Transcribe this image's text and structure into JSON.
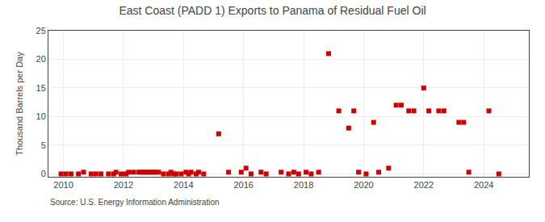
{
  "chart_data": {
    "type": "scatter",
    "title": "East Coast (PADD 1) Exports to Panama of Residual Fuel Oil",
    "ylabel": "Thousand Barrels per Day",
    "annotations": [
      "Source: U.S. Energy Information Administration"
    ],
    "color": "#cc0000",
    "marker": "square",
    "grid": true,
    "xlim": [
      2009.5,
      2025.5
    ],
    "xticks": [
      2010,
      2012,
      2014,
      2016,
      2018,
      2020,
      2022,
      2024
    ],
    "ylim": [
      -0.5,
      25
    ],
    "yticks": [
      0,
      5,
      10,
      15,
      20,
      25
    ],
    "x": [
      2009.92,
      2010.08,
      2010.25,
      2010.5,
      2010.67,
      2010.92,
      2011.08,
      2011.25,
      2011.5,
      2011.67,
      2011.75,
      2011.92,
      2012.08,
      2012.17,
      2012.33,
      2012.5,
      2012.58,
      2012.67,
      2012.75,
      2012.83,
      2012.92,
      2013.0,
      2013.08,
      2013.17,
      2013.33,
      2013.5,
      2013.58,
      2013.67,
      2013.75,
      2013.92,
      2014.08,
      2014.17,
      2014.25,
      2014.42,
      2014.5,
      2014.67,
      2015.17,
      2015.5,
      2015.92,
      2016.08,
      2016.25,
      2016.58,
      2016.75,
      2017.25,
      2017.5,
      2017.67,
      2017.83,
      2018.08,
      2018.25,
      2018.5,
      2018.83,
      2019.17,
      2019.5,
      2019.67,
      2019.83,
      2020.08,
      2020.33,
      2020.5,
      2020.83,
      2021.08,
      2021.25,
      2021.5,
      2021.67,
      2022.0,
      2022.17,
      2022.5,
      2022.67,
      2023.17,
      2023.33,
      2023.5,
      2024.17,
      2024.5
    ],
    "values": [
      0.0,
      0.0,
      0.0,
      0.0,
      0.3,
      0.0,
      0.0,
      0.0,
      0.0,
      0.0,
      0.3,
      0.0,
      0.0,
      0.3,
      0.3,
      0.3,
      0.3,
      0.3,
      0.3,
      0.3,
      0.3,
      0.3,
      0.3,
      0.3,
      0.0,
      0.0,
      0.3,
      0.0,
      0.0,
      0.0,
      0.3,
      0.0,
      0.3,
      0.0,
      0.3,
      0.0,
      7.0,
      0.3,
      0.3,
      1.0,
      0.0,
      0.3,
      0.0,
      0.3,
      0.0,
      0.3,
      0.0,
      0.3,
      0.0,
      0.3,
      21.0,
      11.0,
      8.0,
      11.0,
      0.3,
      0.0,
      9.0,
      0.3,
      1.0,
      12.0,
      12.0,
      11.0,
      11.0,
      15.0,
      11.0,
      11.0,
      11.0,
      9.0,
      9.0,
      0.3,
      11.0,
      0.0
    ]
  }
}
